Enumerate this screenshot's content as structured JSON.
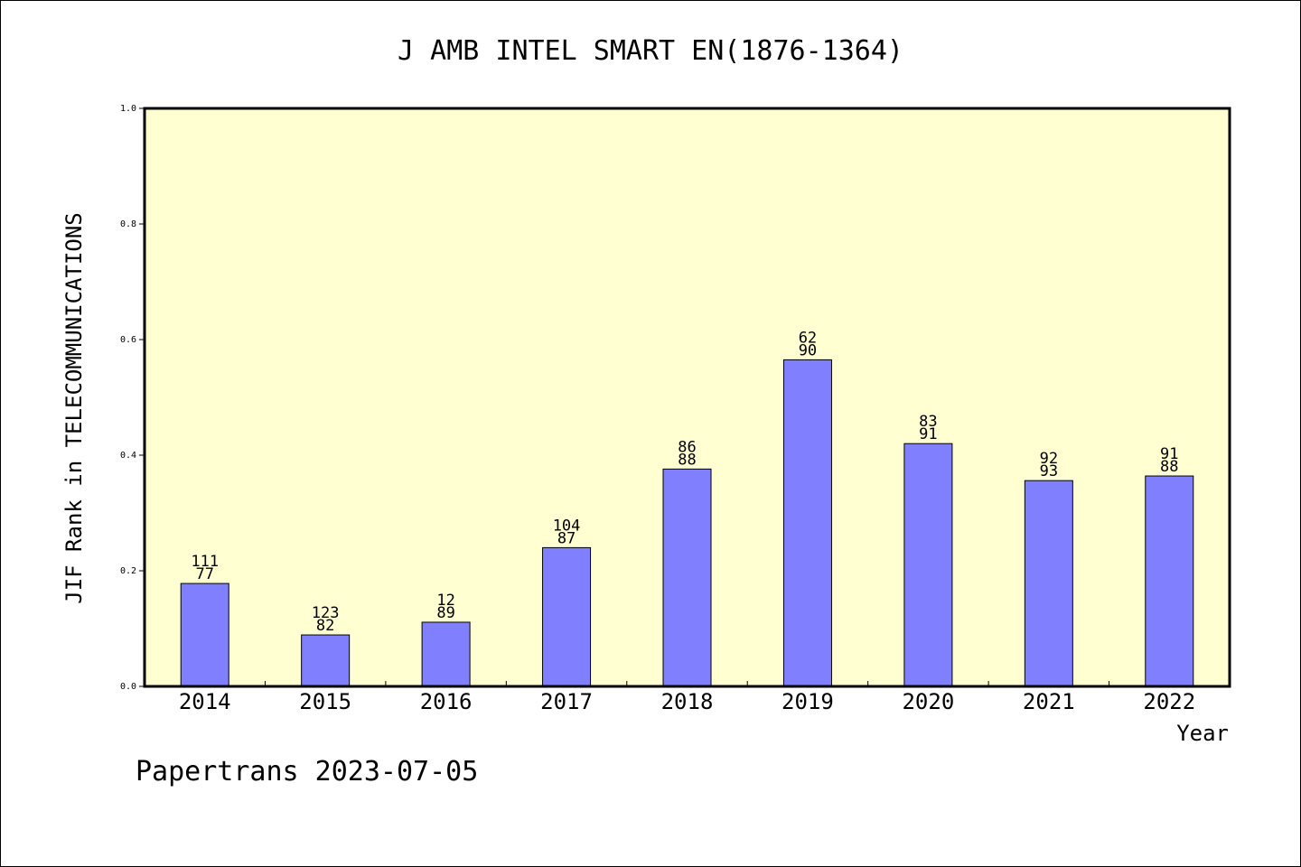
{
  "chart_data": {
    "type": "bar",
    "title": "J AMB INTEL SMART EN(1876-1364)",
    "xlabel": "Year",
    "ylabel": "JIF Rank in TELECOMMUNICATIONS",
    "categories": [
      "2014",
      "2015",
      "2016",
      "2017",
      "2018",
      "2019",
      "2020",
      "2021",
      "2022"
    ],
    "values": [
      0.178,
      0.089,
      0.111,
      0.24,
      0.376,
      0.565,
      0.42,
      0.356,
      0.364
    ],
    "bar_labels_top": [
      "111",
      "123",
      "12",
      "104",
      "86",
      "62",
      "83",
      "92",
      "91"
    ],
    "bar_labels_bottom": [
      "77",
      "82",
      "89",
      "87",
      "88",
      "90",
      "91",
      "93",
      "88"
    ],
    "ylim": [
      0,
      1.0
    ],
    "yticks": [
      "0.0",
      "0.2",
      "0.4",
      "0.6",
      "0.8",
      "1.0"
    ],
    "grid": false,
    "colors": {
      "bar": "#8080ff",
      "plot_background": "#ffffd2",
      "frame": "#000000"
    }
  },
  "footer": {
    "credit": "Papertrans 2023-07-05"
  }
}
